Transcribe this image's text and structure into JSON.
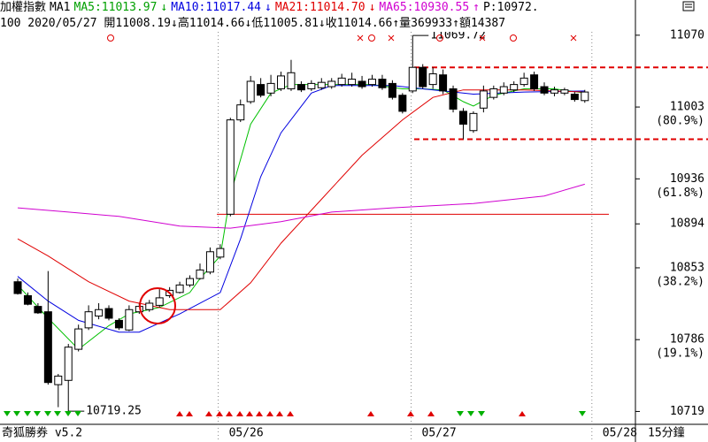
{
  "chart_data": {
    "type": "candlestick",
    "header": {
      "line1": [
        {
          "text": "加權指數",
          "color": "#000000"
        },
        {
          "text": "MA1",
          "color": "#000000"
        },
        {
          "text": "MA5:11013.97",
          "color": "#00a000"
        },
        {
          "text": "↓",
          "color": "#00a000"
        },
        {
          "text": "MA10:11017.44",
          "color": "#0000e0"
        },
        {
          "text": "↓",
          "color": "#0000e0"
        },
        {
          "text": "MA21:11014.70",
          "color": "#e00000"
        },
        {
          "text": "↓",
          "color": "#e00000"
        },
        {
          "text": "MA65:10930.55",
          "color": "#d000d0"
        },
        {
          "text": "↑",
          "color": "#d000d0"
        },
        {
          "text": "P:10972.",
          "color": "#000000"
        }
      ],
      "line2": "100 2020/05/27 開11008.19↓高11014.66↓低11005.81↓收11014.66↑量369933↑額14387"
    },
    "x": [
      0,
      1,
      2,
      3,
      4,
      5,
      6,
      7,
      8,
      9,
      10,
      11,
      12,
      13,
      14,
      15,
      16,
      17,
      18,
      19,
      20,
      21,
      22,
      23,
      24,
      25,
      26,
      27,
      28,
      29,
      30,
      31,
      32,
      33,
      34,
      35,
      36,
      37,
      38,
      39,
      40,
      41,
      42,
      43,
      44,
      45,
      46,
      47,
      48,
      49,
      50,
      51,
      52,
      53,
      54,
      55,
      56
    ],
    "open": [
      10840,
      10827,
      10817,
      10812,
      10744,
      10748,
      10777,
      10797,
      10808,
      10815,
      10804,
      10795,
      10812,
      10814,
      10818,
      10827,
      10830,
      10837,
      10843,
      10849,
      10863,
      10903,
      10991,
      11008,
      11024,
      11016,
      11020,
      11020,
      11024,
      11020,
      11021,
      11022,
      11024,
      11024,
      11027,
      11024,
      11029,
      11025,
      11014,
      11018,
      11040,
      11024,
      11033,
      11020,
      10999,
      10981,
      11002,
      11012,
      11016,
      11019,
      11024,
      11033,
      11022,
      11016,
      11016,
      11015,
      11009
    ],
    "high": [
      10843,
      10830,
      10820,
      10850,
      10754,
      10782,
      10800,
      10818,
      10820,
      10818,
      10806,
      10818,
      10820,
      10823,
      10833,
      10835,
      10840,
      10846,
      10857,
      10872,
      10875,
      10993,
      11010,
      11032,
      11030,
      11033,
      11036,
      11047,
      11027,
      11028,
      11030,
      11030,
      11034,
      11035,
      11032,
      11033,
      11033,
      11028,
      11016,
      11069.72,
      11043,
      11040,
      11038,
      11023,
      11002,
      10999,
      11023,
      11023,
      11026,
      11027,
      11035,
      11036,
      11026,
      11022,
      11021,
      11017,
      11019
    ],
    "low": [
      10828,
      10818,
      10810,
      10744,
      10723,
      10719.25,
      10775,
      10795,
      10805,
      10804,
      10795,
      10794,
      10810,
      10812,
      10816,
      10825,
      10829,
      10835,
      10842,
      10847,
      10861,
      10901,
      10989,
      11006,
      11012,
      11013,
      11018,
      11018,
      11017,
      11018,
      11019,
      11020,
      11022,
      11022,
      11020,
      11022,
      11019,
      11010,
      10997,
      11016,
      11020,
      11020,
      11015,
      10998,
      10973,
      10979,
      10998,
      11010,
      11014,
      11017,
      11022,
      11018,
      11014,
      11013,
      11014,
      11008,
      11007
    ],
    "close": [
      10829,
      10819,
      10811,
      10746,
      10752,
      10779,
      10796,
      10812,
      10814,
      10806,
      10797,
      10814,
      10817,
      10820,
      10825,
      10832,
      10837,
      10843,
      10851,
      10868,
      10871,
      10991,
      11005,
      11027,
      11014,
      11025,
      11032,
      11035,
      11019,
      11025,
      11026,
      11027,
      11030,
      11029,
      11022,
      11029,
      11021,
      11012,
      10999,
      11040,
      11022,
      11034,
      11018,
      11001,
      10987,
      10997,
      11018,
      11020,
      11022,
      11024,
      11030,
      11020,
      11016,
      11019,
      11019,
      11010,
      11017
    ],
    "overlays": [
      {
        "color": "#00c000",
        "x": [
          0,
          3,
          6,
          9,
          11,
          14,
          17,
          18,
          20,
          21,
          23,
          25,
          27,
          30,
          35,
          38,
          40,
          42,
          44,
          45,
          47,
          50,
          53,
          56
        ],
        "values": [
          10837,
          10806,
          10777,
          10799,
          10810,
          10816,
          10830,
          10843,
          10864,
          10921,
          10987,
          11016,
          11024,
          11024,
          11024,
          11020,
          11020,
          11019,
          11008,
          11004,
          11014,
          11020,
          11020,
          11016
        ]
      },
      {
        "color": "#0000e0",
        "x": [
          0,
          3,
          6,
          10,
          12,
          16,
          20,
          22,
          24,
          26,
          29,
          31,
          37,
          40,
          45,
          50,
          56
        ],
        "values": [
          10845,
          10822,
          10804,
          10793,
          10793,
          10810,
          10830,
          10880,
          10938,
          10979,
          11016,
          11023,
          11023,
          11020,
          11015,
          11017,
          11018
        ]
      },
      {
        "color": "#e00000",
        "x": [
          0,
          3,
          7,
          11,
          15,
          20,
          23,
          26,
          30,
          34,
          38,
          41,
          44,
          50,
          56
        ],
        "values": [
          10880,
          10864,
          10840,
          10822,
          10814,
          10814,
          10839,
          10876,
          10917,
          10958,
          10991,
          11012,
          11019,
          11019,
          11017
        ]
      },
      {
        "color": "#d000d0",
        "x": [
          0,
          5,
          10,
          16,
          21,
          26,
          31,
          37,
          45,
          52,
          56
        ],
        "values": [
          10909,
          10905,
          10901,
          10892,
          10890,
          10896,
          10905,
          10909,
          10913,
          10920,
          10931
        ]
      }
    ],
    "reference_lines": [
      {
        "value": 11040,
        "style": "dashed",
        "color": "#e00000"
      },
      {
        "value": 10973,
        "style": "dashed",
        "color": "#e00000"
      },
      {
        "value": 10903,
        "style": "solid",
        "color": "#e00000"
      }
    ],
    "annotations": [
      {
        "text": "11069.72",
        "value": 11069.72
      },
      {
        "text": "10719.25",
        "value": 10719.25
      }
    ],
    "ylim": [
      10707,
      11088
    ],
    "yticks": [
      11070,
      11003,
      10936,
      10894,
      10853,
      10786,
      10719
    ],
    "retracement_labels": [
      {
        "value": 11003,
        "label": "(80.9%)"
      },
      {
        "value": 10936,
        "label": "(61.8%)"
      },
      {
        "value": 10853,
        "label": "(38.2%)"
      },
      {
        "value": 10786,
        "label": "(19.1%)"
      }
    ],
    "xlim": [
      -1.75,
      61
    ],
    "xticks": [
      {
        "value": 19.8,
        "label": "05/26"
      },
      {
        "value": 38.85,
        "label": "05/27"
      },
      {
        "value": 56.7,
        "label": "05/28"
      }
    ],
    "footer_left": "奇狐勝券 v5.2",
    "footer_right": "15分鐘"
  }
}
